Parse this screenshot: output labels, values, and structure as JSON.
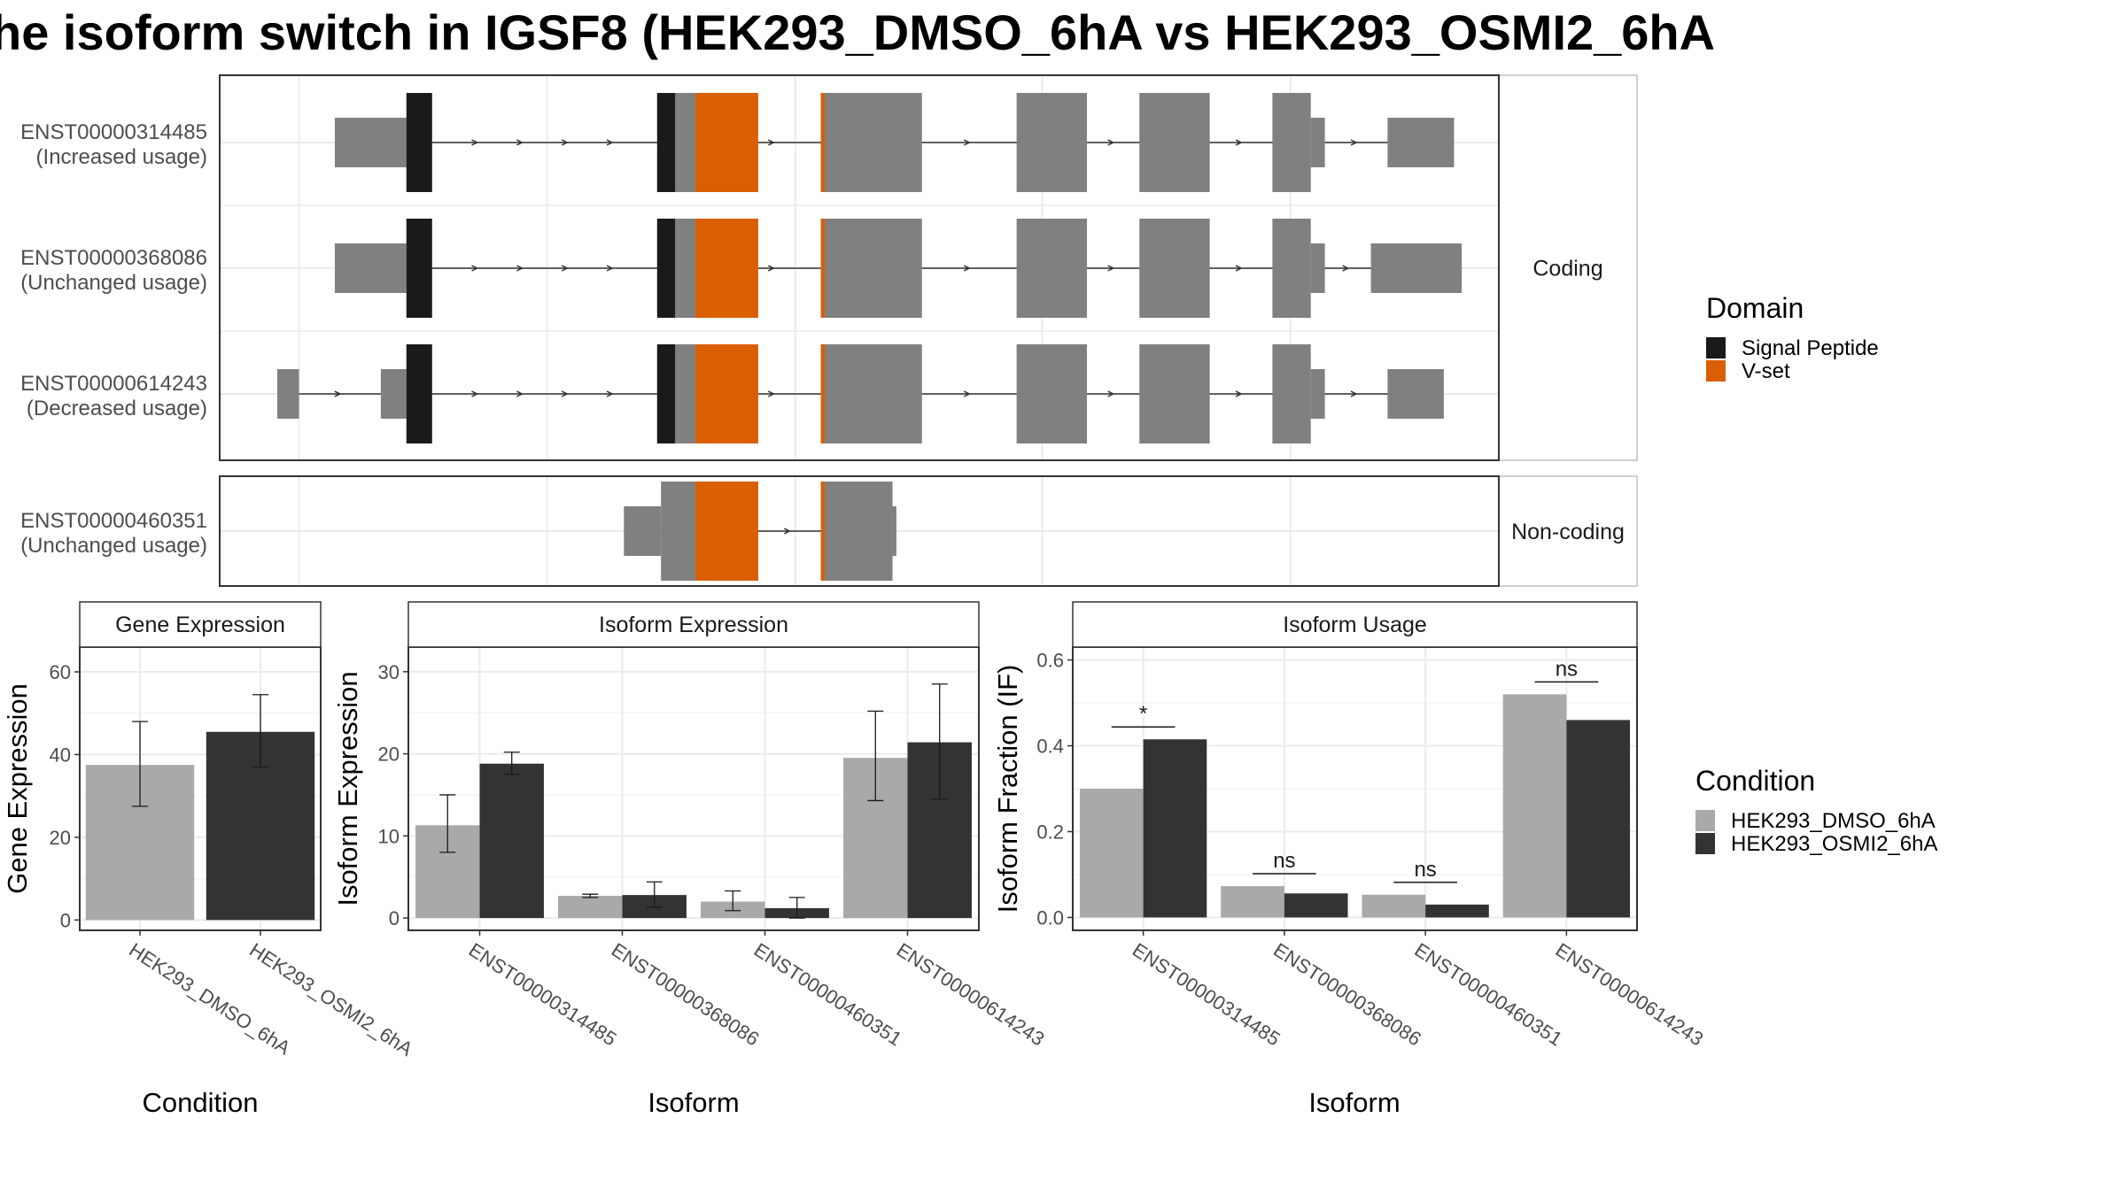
{
  "title": "he isoform switch in IGSF8 (HEK293_DMSO_6hA vs HEK293_OSMI2_6hA",
  "colors": {
    "exon": "#808080",
    "signal_peptide": "#1a1a1a",
    "vset": "#d95f02",
    "dmso": "#a9a9a9",
    "osmi": "#333333",
    "grid": "#ebebeb",
    "strip": "#ffffff",
    "border": "#333333"
  },
  "isoform_structure": {
    "x_range": [
      0,
      1000
    ],
    "panels": [
      {
        "label": "Coding",
        "isoforms": [
          {
            "id": "ENST00000314485",
            "usage": "(Increased usage)",
            "exons": [
              {
                "start": 90,
                "end": 146,
                "cds": false
              },
              {
                "start": 146,
                "end": 166,
                "cds": true
              },
              {
                "start": 342,
                "end": 396,
                "cds": true
              },
              {
                "start": 470,
                "end": 549,
                "cds": true
              },
              {
                "start": 623,
                "end": 678,
                "cds": true
              },
              {
                "start": 719,
                "end": 774,
                "cds": true
              },
              {
                "start": 823,
                "end": 853,
                "cds": true
              },
              {
                "start": 853,
                "end": 864,
                "cds": false
              },
              {
                "start": 913,
                "end": 965,
                "cds": false
              }
            ],
            "domains": [
              {
                "type": "signal_peptide",
                "start": 146,
                "end": 166
              },
              {
                "type": "signal_peptide",
                "start": 342,
                "end": 356
              },
              {
                "type": "vset",
                "start": 372,
                "end": 421
              },
              {
                "type": "vset",
                "start": 470,
                "end": 473
              }
            ]
          },
          {
            "id": "ENST00000368086",
            "usage": "(Unchanged usage)",
            "exons": [
              {
                "start": 90,
                "end": 146,
                "cds": false
              },
              {
                "start": 146,
                "end": 166,
                "cds": true
              },
              {
                "start": 342,
                "end": 396,
                "cds": true
              },
              {
                "start": 470,
                "end": 549,
                "cds": true
              },
              {
                "start": 623,
                "end": 678,
                "cds": true
              },
              {
                "start": 719,
                "end": 774,
                "cds": true
              },
              {
                "start": 823,
                "end": 853,
                "cds": true
              },
              {
                "start": 853,
                "end": 864,
                "cds": false
              },
              {
                "start": 900,
                "end": 971,
                "cds": false
              }
            ],
            "domains": [
              {
                "type": "signal_peptide",
                "start": 146,
                "end": 166
              },
              {
                "type": "signal_peptide",
                "start": 342,
                "end": 356
              },
              {
                "type": "vset",
                "start": 372,
                "end": 421
              },
              {
                "type": "vset",
                "start": 470,
                "end": 473
              }
            ]
          },
          {
            "id": "ENST00000614243",
            "usage": "(Decreased usage)",
            "exons": [
              {
                "start": 45,
                "end": 62,
                "cds": false
              },
              {
                "start": 126,
                "end": 146,
                "cds": false
              },
              {
                "start": 146,
                "end": 166,
                "cds": true
              },
              {
                "start": 342,
                "end": 396,
                "cds": true
              },
              {
                "start": 470,
                "end": 549,
                "cds": true
              },
              {
                "start": 623,
                "end": 678,
                "cds": true
              },
              {
                "start": 719,
                "end": 774,
                "cds": true
              },
              {
                "start": 823,
                "end": 853,
                "cds": true
              },
              {
                "start": 853,
                "end": 864,
                "cds": false
              },
              {
                "start": 913,
                "end": 957,
                "cds": false
              }
            ],
            "domains": [
              {
                "type": "signal_peptide",
                "start": 146,
                "end": 166
              },
              {
                "type": "signal_peptide",
                "start": 342,
                "end": 356
              },
              {
                "type": "vset",
                "start": 372,
                "end": 421
              },
              {
                "type": "vset",
                "start": 470,
                "end": 473
              }
            ]
          }
        ]
      },
      {
        "label": "Non-coding",
        "isoforms": [
          {
            "id": "ENST00000460351",
            "usage": "(Unchanged usage)",
            "exons": [
              {
                "start": 316,
                "end": 345,
                "cds": false
              },
              {
                "start": 345,
                "end": 421,
                "cds": true
              },
              {
                "start": 470,
                "end": 526,
                "cds": true
              },
              {
                "start": 526,
                "end": 529,
                "cds": false
              }
            ],
            "domains": [
              {
                "type": "vset",
                "start": 372,
                "end": 421
              },
              {
                "type": "vset",
                "start": 470,
                "end": 473
              }
            ]
          }
        ]
      }
    ]
  },
  "legend_domain": {
    "title": "Domain",
    "items": [
      {
        "label": "Signal Peptide",
        "color_key": "signal_peptide"
      },
      {
        "label": "V-set",
        "color_key": "vset"
      }
    ]
  },
  "legend_condition": {
    "title": "Condition",
    "items": [
      {
        "label": "HEK293_DMSO_6hA",
        "color_key": "dmso"
      },
      {
        "label": "HEK293_OSMI2_6hA",
        "color_key": "osmi"
      }
    ]
  },
  "chart_data": [
    {
      "type": "bar",
      "title": "Gene Expression",
      "xlabel": "Condition",
      "ylabel": "Gene Expression",
      "ylim": [
        -2.5,
        66
      ],
      "yticks": [
        0,
        20,
        40,
        60
      ],
      "categories": [
        "HEK293_DMSO_6hA",
        "HEK293_OSMI2_6hA"
      ],
      "values": [
        37.5,
        45.5
      ],
      "errors": [
        [
          27.5,
          48
        ],
        [
          37,
          54.5
        ]
      ]
    },
    {
      "type": "bar",
      "title": "Isoform Expression",
      "xlabel": "Isoform",
      "ylabel": "Isoform Expression",
      "ylim": [
        -1.5,
        33
      ],
      "yticks": [
        0,
        10,
        20,
        30
      ],
      "categories": [
        "ENST00000314485",
        "ENST00000368086",
        "ENST00000460351",
        "ENST00000614243"
      ],
      "series": [
        {
          "name": "HEK293_DMSO_6hA",
          "values": [
            11.3,
            2.7,
            2.0,
            19.5
          ],
          "errors": [
            [
              8.0,
              15.0
            ],
            [
              2.5,
              2.9
            ],
            [
              0.9,
              3.3
            ],
            [
              14.3,
              25.2
            ]
          ]
        },
        {
          "name": "HEK293_OSMI2_6hA",
          "values": [
            18.8,
            2.8,
            1.2,
            21.4
          ],
          "errors": [
            [
              17.5,
              20.2
            ],
            [
              1.3,
              4.4
            ],
            [
              0.0,
              2.5
            ],
            [
              14.5,
              28.5
            ]
          ]
        }
      ]
    },
    {
      "type": "bar",
      "title": "Isoform Usage",
      "xlabel": "Isoform",
      "ylabel": "Isoform Fraction (IF)",
      "ylim": [
        -0.03,
        0.63
      ],
      "yticks": [
        0.0,
        0.2,
        0.4,
        0.6
      ],
      "ytick_labels": [
        "0.0",
        "0.2",
        "0.4",
        "0.6"
      ],
      "categories": [
        "ENST00000314485",
        "ENST00000368086",
        "ENST00000460351",
        "ENST00000614243"
      ],
      "series": [
        {
          "name": "HEK293_DMSO_6hA",
          "values": [
            0.3,
            0.073,
            0.053,
            0.52
          ]
        },
        {
          "name": "HEK293_OSMI2_6hA",
          "values": [
            0.415,
            0.056,
            0.03,
            0.46
          ]
        }
      ],
      "significance": [
        "*",
        "ns",
        "ns",
        "ns"
      ]
    }
  ]
}
